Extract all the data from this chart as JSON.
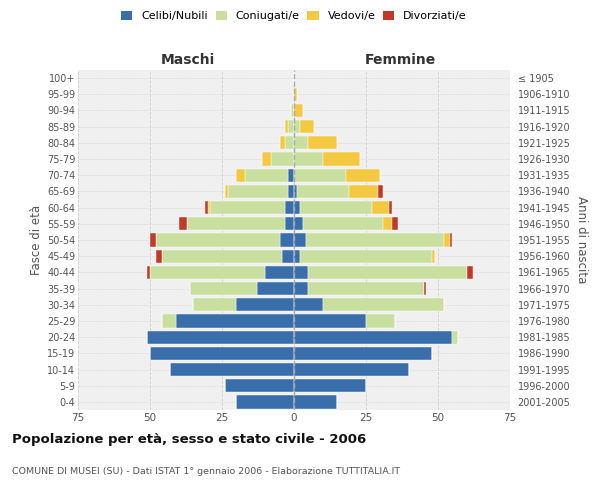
{
  "age_groups": [
    "0-4",
    "5-9",
    "10-14",
    "15-19",
    "20-24",
    "25-29",
    "30-34",
    "35-39",
    "40-44",
    "45-49",
    "50-54",
    "55-59",
    "60-64",
    "65-69",
    "70-74",
    "75-79",
    "80-84",
    "85-89",
    "90-94",
    "95-99",
    "100+"
  ],
  "birth_years": [
    "2001-2005",
    "1996-2000",
    "1991-1995",
    "1986-1990",
    "1981-1985",
    "1976-1980",
    "1971-1975",
    "1966-1970",
    "1961-1965",
    "1956-1960",
    "1951-1955",
    "1946-1950",
    "1941-1945",
    "1936-1940",
    "1931-1935",
    "1926-1930",
    "1921-1925",
    "1916-1920",
    "1911-1915",
    "1906-1910",
    "≤ 1905"
  ],
  "male": {
    "celibi": [
      20,
      24,
      43,
      50,
      51,
      41,
      20,
      13,
      10,
      4,
      5,
      3,
      3,
      2,
      2,
      0,
      0,
      0,
      0,
      0,
      0
    ],
    "coniugati": [
      0,
      0,
      0,
      0,
      0,
      5,
      15,
      23,
      40,
      42,
      43,
      34,
      26,
      21,
      15,
      8,
      3,
      2,
      1,
      0,
      0
    ],
    "vedovi": [
      0,
      0,
      0,
      0,
      0,
      0,
      0,
      0,
      0,
      0,
      0,
      0,
      1,
      1,
      3,
      3,
      2,
      1,
      0,
      0,
      0
    ],
    "divorziati": [
      0,
      0,
      0,
      0,
      0,
      0,
      0,
      0,
      1,
      2,
      2,
      3,
      1,
      0,
      0,
      0,
      0,
      0,
      0,
      0,
      0
    ]
  },
  "female": {
    "nubili": [
      15,
      25,
      40,
      48,
      55,
      25,
      10,
      5,
      5,
      2,
      4,
      3,
      2,
      1,
      0,
      0,
      0,
      0,
      0,
      0,
      0
    ],
    "coniugate": [
      0,
      0,
      0,
      0,
      2,
      10,
      42,
      40,
      55,
      46,
      48,
      28,
      25,
      18,
      18,
      10,
      5,
      2,
      0,
      0,
      0
    ],
    "vedove": [
      0,
      0,
      0,
      0,
      0,
      0,
      0,
      0,
      0,
      1,
      2,
      3,
      6,
      10,
      12,
      13,
      10,
      5,
      3,
      1,
      0
    ],
    "divorziate": [
      0,
      0,
      0,
      0,
      0,
      0,
      0,
      1,
      2,
      0,
      1,
      2,
      1,
      2,
      0,
      0,
      0,
      0,
      0,
      0,
      0
    ]
  },
  "colors": {
    "celibi": "#3A6EAA",
    "coniugati": "#C8DFA0",
    "vedovi": "#F5C842",
    "divorziati": "#C0392B"
  },
  "xlim": 75,
  "title": "Popolazione per età, sesso e stato civile - 2006",
  "subtitle": "COMUNE DI MUSEI (SU) - Dati ISTAT 1° gennaio 2006 - Elaborazione TUTTITALIA.IT",
  "xlabel_left": "Maschi",
  "xlabel_right": "Femmine",
  "ylabel_left": "Fasce di età",
  "ylabel_right": "Anni di nascita",
  "legend_labels": [
    "Celibi/Nubili",
    "Coniugati/e",
    "Vedovi/e",
    "Divorziati/e"
  ],
  "background_color": "#ffffff",
  "plot_bg": "#f0f0f0",
  "grid_color": "#cccccc"
}
